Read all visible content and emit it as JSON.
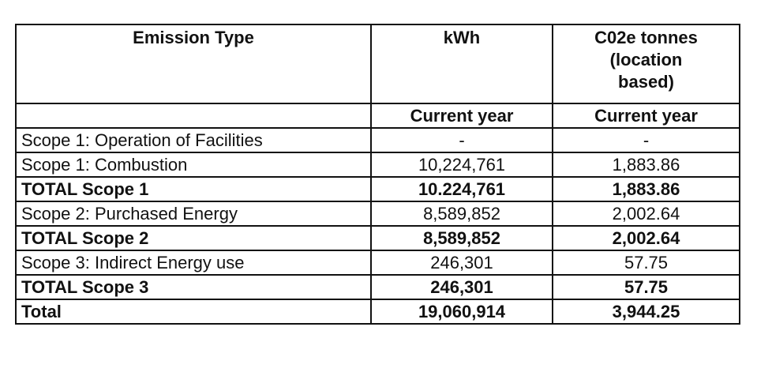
{
  "table": {
    "headers": {
      "col1": "Emission Type",
      "col2": "kWh",
      "col3_lines": [
        "C02e tonnes",
        "(location",
        "based)"
      ]
    },
    "subheader": [
      "",
      "Current year",
      "Current year"
    ],
    "rows": [
      {
        "label": "Scope 1: Operation of Facilities",
        "kwh": "-",
        "co2e": "-",
        "bold": false
      },
      {
        "label": "Scope 1: Combustion",
        "kwh": "10,224,761",
        "co2e": "1,883.86",
        "bold": false
      },
      {
        "label": "TOTAL Scope 1",
        "kwh": "10.224,761",
        "co2e": "1,883.86",
        "bold": true
      },
      {
        "label": "Scope 2: Purchased Energy",
        "kwh": "8,589,852",
        "co2e": "2,002.64",
        "bold": false
      },
      {
        "label": "TOTAL Scope 2",
        "kwh": "8,589,852",
        "co2e": "2,002.64",
        "bold": true
      },
      {
        "label": "Scope 3: Indirect Energy use",
        "kwh": "246,301",
        "co2e": "57.75",
        "bold": false
      },
      {
        "label": "TOTAL Scope 3",
        "kwh": "246,301",
        "co2e": "57.75",
        "bold": true
      },
      {
        "label": "Total",
        "kwh": "19,060,914",
        "co2e": "3,944.25",
        "bold": true
      }
    ]
  }
}
